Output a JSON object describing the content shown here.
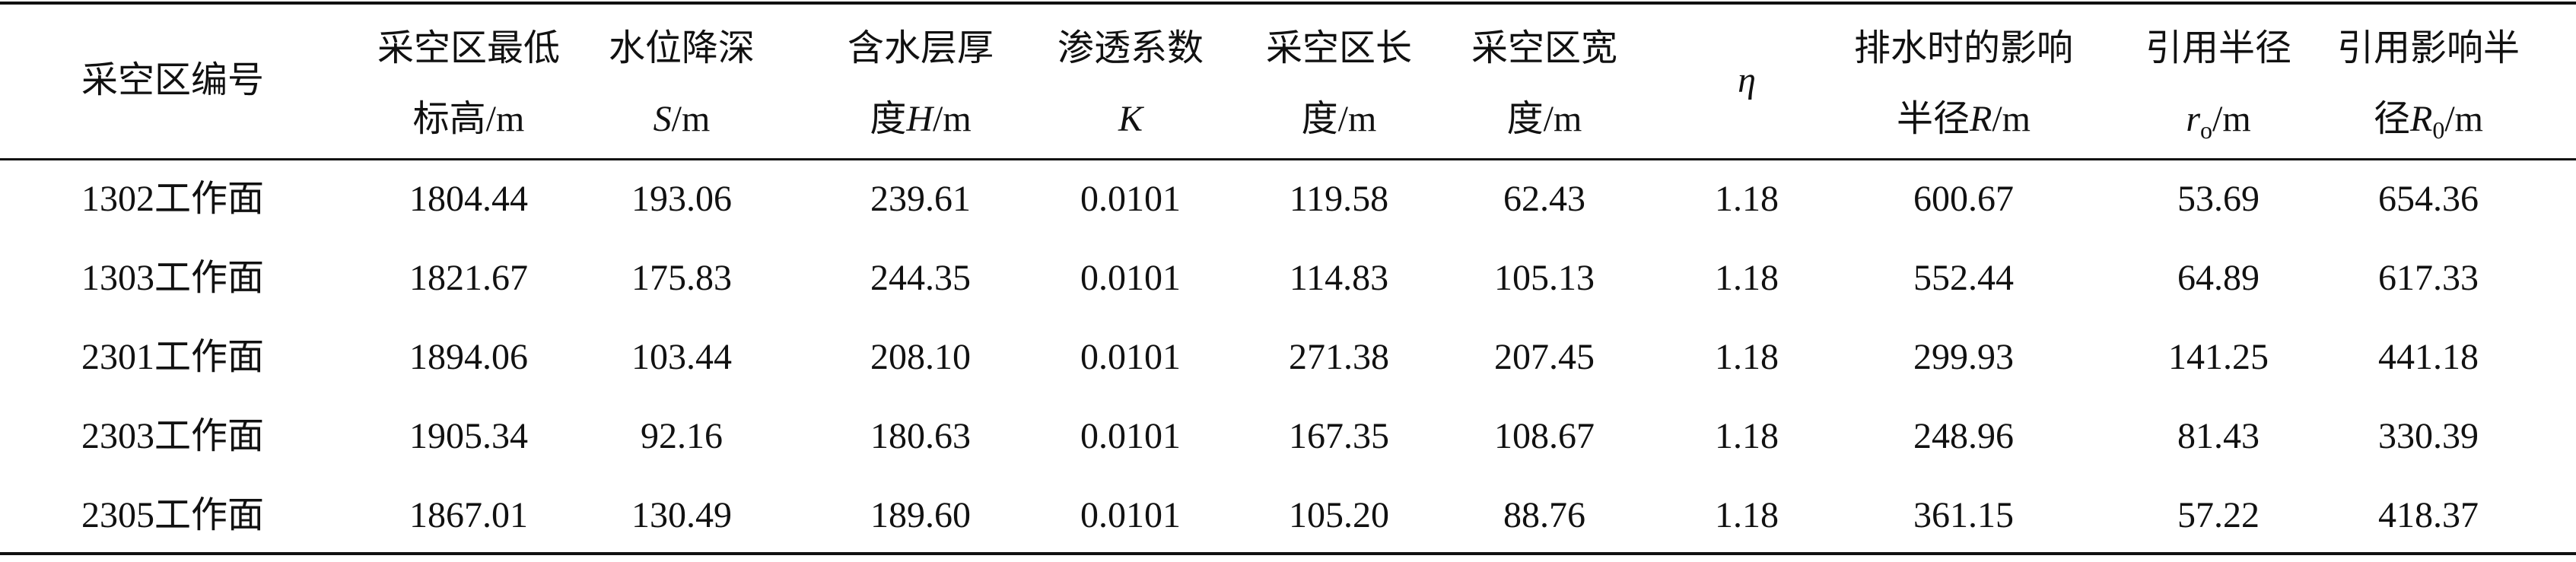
{
  "table": {
    "header": [
      [
        [
          {
            "text": "采空区编号"
          }
        ]
      ],
      [
        [
          {
            "text": "采空区最低"
          }
        ],
        [
          {
            "text": "标高/m"
          }
        ]
      ],
      [
        [
          {
            "text": "水位降深"
          }
        ],
        [
          {
            "text": "S",
            "italic": true
          },
          {
            "text": "/m"
          }
        ]
      ],
      [
        [
          {
            "text": "含水层厚"
          }
        ],
        [
          {
            "text": "度"
          },
          {
            "text": "H",
            "italic": true
          },
          {
            "text": "/m"
          }
        ]
      ],
      [
        [
          {
            "text": "渗透系数"
          }
        ],
        [
          {
            "text": "K",
            "italic": true
          }
        ]
      ],
      [
        [
          {
            "text": "采空区长"
          }
        ],
        [
          {
            "text": "度/m"
          }
        ]
      ],
      [
        [
          {
            "text": "采空区宽"
          }
        ],
        [
          {
            "text": "度/m"
          }
        ]
      ],
      [
        [
          {
            "text": "η",
            "italic": true
          }
        ]
      ],
      [
        [
          {
            "text": "排水时的影响"
          }
        ],
        [
          {
            "text": "半径"
          },
          {
            "text": "R",
            "italic": true
          },
          {
            "text": "/m"
          }
        ]
      ],
      [
        [
          {
            "text": "引用半径"
          }
        ],
        [
          {
            "text": "r",
            "italic": true
          },
          {
            "text": "o",
            "sub": true
          },
          {
            "text": "/m"
          }
        ]
      ],
      [
        [
          {
            "text": "引用影响半"
          }
        ],
        [
          {
            "text": "径"
          },
          {
            "text": "R",
            "italic": true
          },
          {
            "text": "0",
            "sub": true
          },
          {
            "text": "/m"
          }
        ]
      ]
    ],
    "rows": [
      [
        "1302工作面",
        "1804.44",
        "193.06",
        "239.61",
        "0.0101",
        "119.58",
        "62.43",
        "1.18",
        "600.67",
        "53.69",
        "654.36"
      ],
      [
        "1303工作面",
        "1821.67",
        "175.83",
        "244.35",
        "0.0101",
        "114.83",
        "105.13",
        "1.18",
        "552.44",
        "64.89",
        "617.33"
      ],
      [
        "2301工作面",
        "1894.06",
        "103.44",
        "208.10",
        "0.0101",
        "271.38",
        "207.45",
        "1.18",
        "299.93",
        "141.25",
        "441.18"
      ],
      [
        "2303工作面",
        "1905.34",
        "92.16",
        "180.63",
        "0.0101",
        "167.35",
        "108.67",
        "1.18",
        "248.96",
        "81.43",
        "330.39"
      ],
      [
        "2305工作面",
        "1867.01",
        "130.49",
        "189.60",
        "0.0101",
        "105.20",
        "88.76",
        "1.18",
        "361.15",
        "57.22",
        "418.37"
      ]
    ]
  }
}
